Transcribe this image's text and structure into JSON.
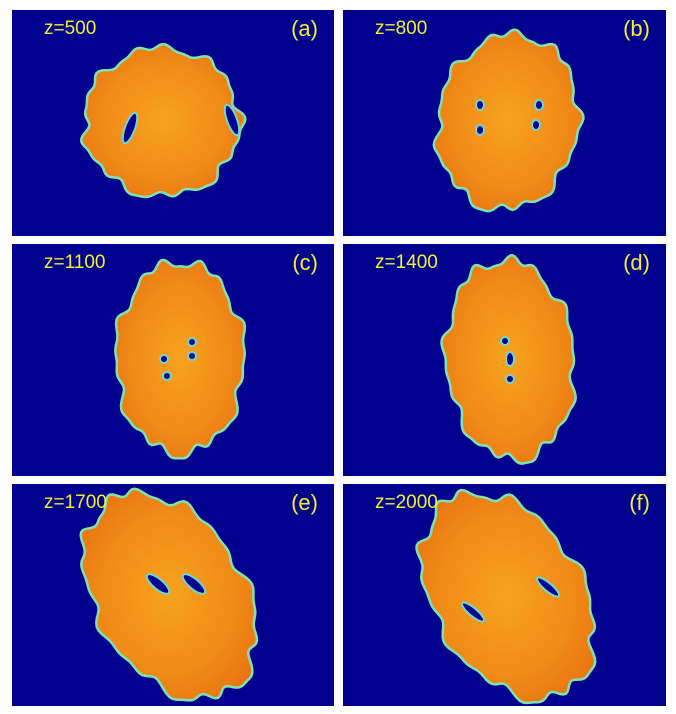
{
  "panels": [
    {
      "z_label": "z=500",
      "tag": "(a)"
    },
    {
      "z_label": "z=800",
      "tag": "(b)"
    },
    {
      "z_label": "z=1100",
      "tag": "(c)"
    },
    {
      "z_label": "z=1400",
      "tag": "(d)"
    },
    {
      "z_label": "z=1700",
      "tag": "(e)"
    },
    {
      "z_label": "z=2000",
      "tag": "(f)"
    }
  ]
}
